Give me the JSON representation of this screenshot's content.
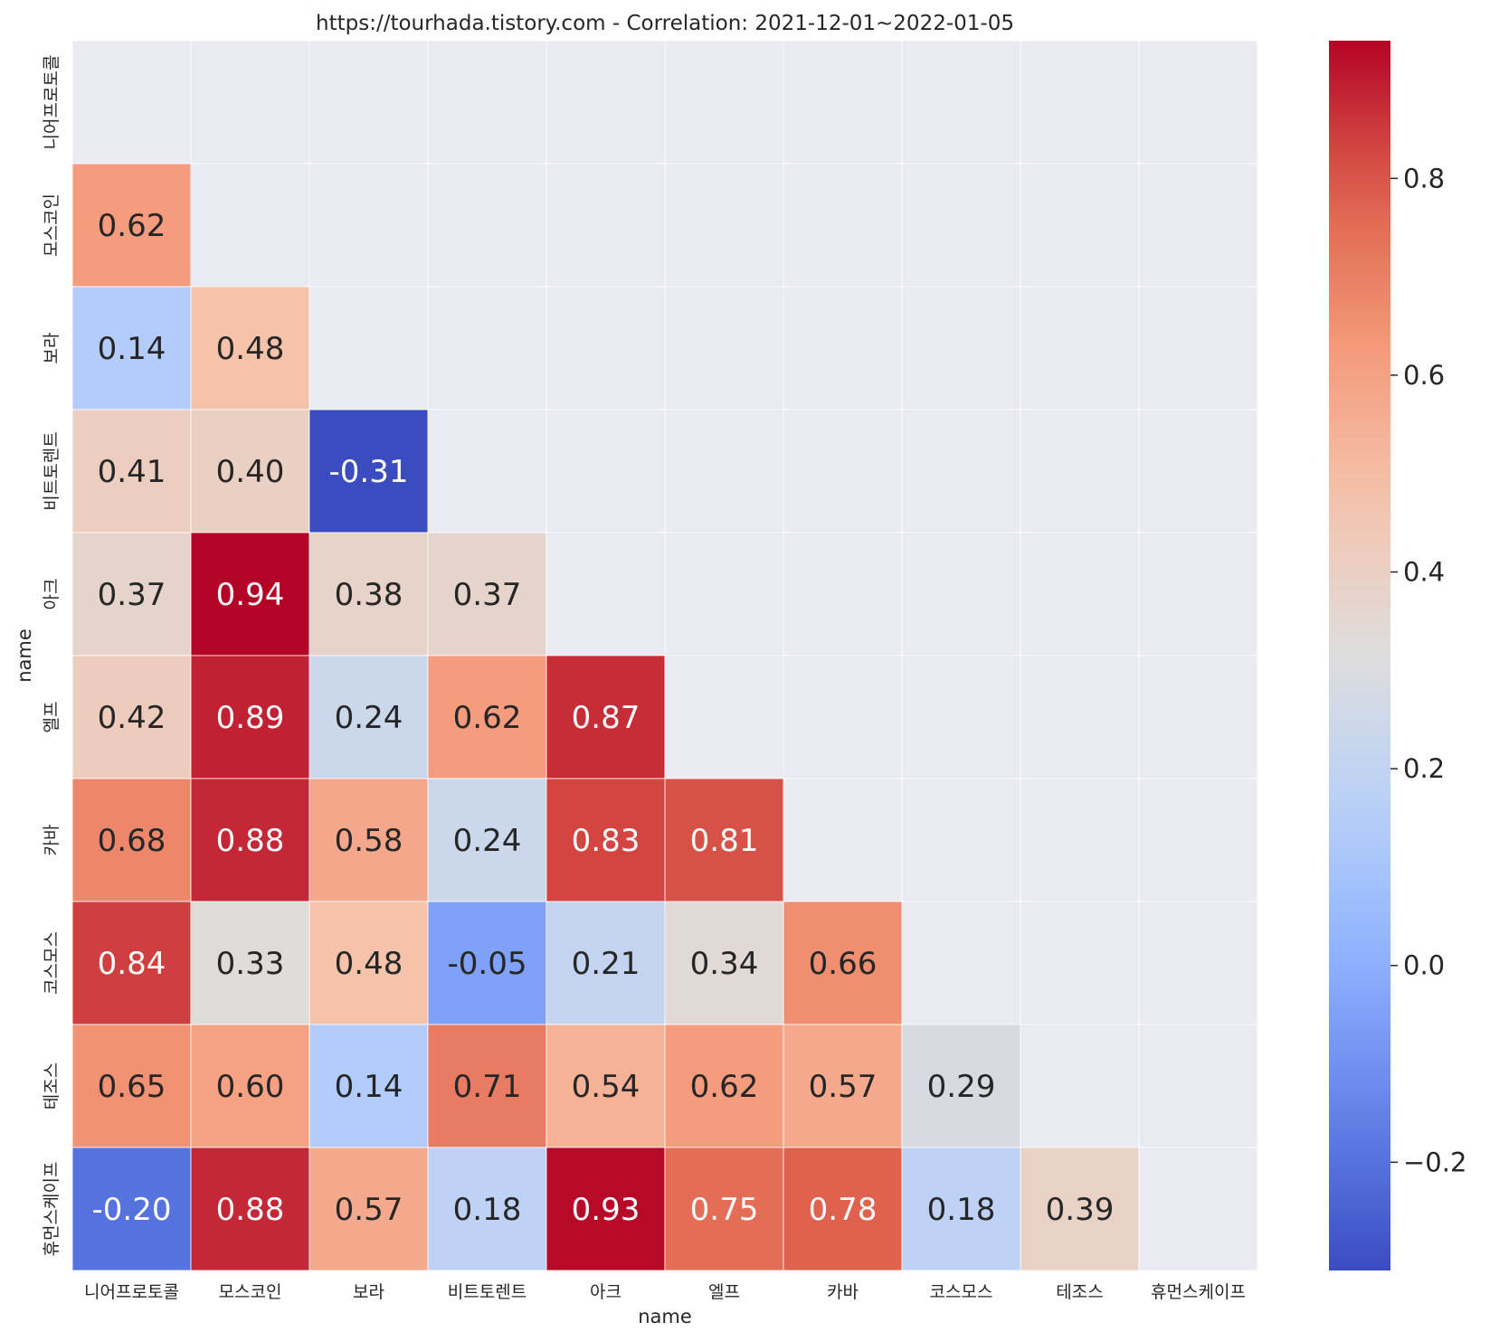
{
  "chart_data": {
    "type": "heatmap",
    "title": "https://tourhada.tistory.com - Correlation: 2021-12-01~2022-01-05",
    "xlabel": "name",
    "ylabel": "name",
    "labels": [
      "니어프로토콜",
      "모스코인",
      "보라",
      "비트토렌트",
      "아크",
      "엘프",
      "카바",
      "코스모스",
      "테조스",
      "휴먼스케이프"
    ],
    "matrix": [
      [
        null,
        null,
        null,
        null,
        null,
        null,
        null,
        null,
        null,
        null
      ],
      [
        0.62,
        null,
        null,
        null,
        null,
        null,
        null,
        null,
        null,
        null
      ],
      [
        0.14,
        0.48,
        null,
        null,
        null,
        null,
        null,
        null,
        null,
        null
      ],
      [
        0.41,
        0.4,
        -0.31,
        null,
        null,
        null,
        null,
        null,
        null,
        null
      ],
      [
        0.37,
        0.94,
        0.38,
        0.37,
        null,
        null,
        null,
        null,
        null,
        null
      ],
      [
        0.42,
        0.89,
        0.24,
        0.62,
        0.87,
        null,
        null,
        null,
        null,
        null
      ],
      [
        0.68,
        0.88,
        0.58,
        0.24,
        0.83,
        0.81,
        null,
        null,
        null,
        null
      ],
      [
        0.84,
        0.33,
        0.48,
        -0.05,
        0.21,
        0.34,
        0.66,
        null,
        null,
        null
      ],
      [
        0.65,
        0.6,
        0.14,
        0.71,
        0.54,
        0.62,
        0.57,
        0.29,
        null,
        null
      ],
      [
        -0.2,
        0.88,
        0.57,
        0.18,
        0.93,
        0.75,
        0.78,
        0.18,
        0.39,
        null
      ]
    ],
    "value_labels": [
      [
        null,
        null,
        null,
        null,
        null,
        null,
        null,
        null,
        null,
        null
      ],
      [
        "0.62",
        null,
        null,
        null,
        null,
        null,
        null,
        null,
        null,
        null
      ],
      [
        "0.14",
        "0.48",
        null,
        null,
        null,
        null,
        null,
        null,
        null,
        null
      ],
      [
        "0.41",
        "0.40",
        "-0.31",
        null,
        null,
        null,
        null,
        null,
        null,
        null
      ],
      [
        "0.37",
        "0.94",
        "0.38",
        "0.37",
        null,
        null,
        null,
        null,
        null,
        null
      ],
      [
        "0.42",
        "0.89",
        "0.24",
        "0.62",
        "0.87",
        null,
        null,
        null,
        null,
        null
      ],
      [
        "0.68",
        "0.88",
        "0.58",
        "0.24",
        "0.83",
        "0.81",
        null,
        null,
        null,
        null
      ],
      [
        "0.84",
        "0.33",
        "0.48",
        "-0.05",
        "0.21",
        "0.34",
        "0.66",
        null,
        null,
        null
      ],
      [
        "0.65",
        "0.60",
        "0.14",
        "0.71",
        "0.54",
        "0.62",
        "0.57",
        "0.29",
        null,
        null
      ],
      [
        "-0.20",
        "0.88",
        "0.57",
        "0.18",
        "0.93",
        "0.75",
        "0.78",
        "0.18",
        "0.39",
        null
      ]
    ],
    "mask": "upper-triangle-including-diagonal",
    "colormap": "coolwarm",
    "vmin": -0.31,
    "vmax": 0.94,
    "colorbar_ticks": [
      -0.2,
      0.0,
      0.2,
      0.4,
      0.6,
      0.8
    ],
    "colorbar_tick_labels": [
      "−0.2",
      "0.0",
      "0.2",
      "0.4",
      "0.6",
      "0.8"
    ],
    "colors": {
      "masked_background": "#eaeaf2",
      "grid_line": "#ffffff",
      "dark_text": "#262626",
      "light_text": "#ffffff"
    }
  }
}
